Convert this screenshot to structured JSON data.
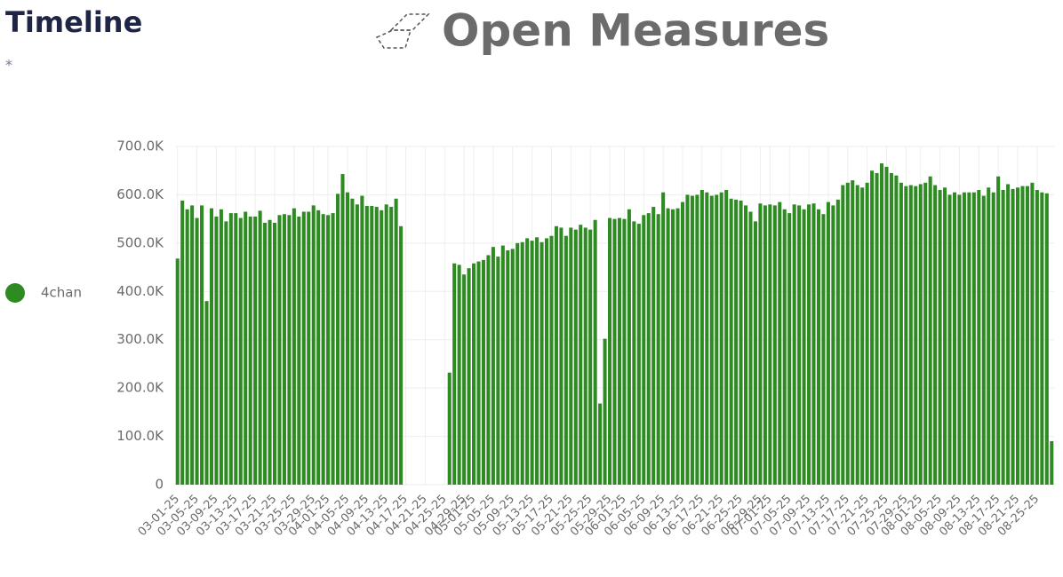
{
  "header": {
    "title": "Timeline",
    "subtitle": "*",
    "brand": "Open Measures"
  },
  "chart_data": {
    "type": "bar",
    "grid": true,
    "legend": "left",
    "ylim": [
      0,
      700000
    ],
    "yticks": [
      0,
      {
        "value": 100000,
        "label": "100.0K"
      },
      {
        "value": 200000,
        "label": "200.0K"
      },
      {
        "value": 300000,
        "label": "300.0K"
      },
      {
        "value": 400000,
        "label": "400.0K"
      },
      {
        "value": 500000,
        "label": "500.0K"
      },
      {
        "value": 600000,
        "label": "600.0K"
      },
      {
        "value": 700000,
        "label": "700.0K"
      }
    ],
    "categories": [
      "03-01-25",
      null,
      null,
      null,
      "03-05-25",
      null,
      null,
      null,
      "03-09-25",
      null,
      null,
      null,
      "03-13-25",
      null,
      null,
      null,
      "03-17-25",
      null,
      null,
      null,
      "03-21-25",
      null,
      null,
      null,
      "03-25-25",
      null,
      null,
      null,
      "03-29-25",
      null,
      null,
      "04-01-25",
      null,
      null,
      null,
      "04-05-25",
      null,
      null,
      null,
      "04-09-25",
      null,
      null,
      null,
      "04-13-25",
      null,
      null,
      null,
      "04-17-25",
      null,
      null,
      null,
      "04-21-25",
      null,
      null,
      null,
      "04-25-25",
      null,
      null,
      null,
      "04-29-25",
      null,
      "05-01-25",
      null,
      null,
      null,
      "05-05-25",
      null,
      null,
      null,
      "05-09-25",
      null,
      null,
      null,
      "05-13-25",
      null,
      null,
      null,
      "05-17-25",
      null,
      null,
      null,
      "05-21-25",
      null,
      null,
      null,
      "05-25-25",
      null,
      null,
      null,
      "05-29-25",
      null,
      null,
      "06-01-25",
      null,
      null,
      null,
      "06-05-25",
      null,
      null,
      null,
      "06-09-25",
      null,
      null,
      null,
      "06-13-25",
      null,
      null,
      null,
      "06-17-25",
      null,
      null,
      null,
      "06-21-25",
      null,
      null,
      null,
      "06-25-25",
      null,
      null,
      null,
      "06-29-25",
      null,
      "07-01-25",
      null,
      null,
      null,
      "07-05-25",
      null,
      null,
      null,
      "07-09-25",
      null,
      null,
      null,
      "07-13-25",
      null,
      null,
      null,
      "07-17-25",
      null,
      null,
      null,
      "07-21-25",
      null,
      null,
      null,
      "07-25-25",
      null,
      null,
      null,
      "07-29-25",
      null,
      null,
      "08-01-25",
      null,
      null,
      null,
      "08-05-25",
      null,
      null,
      null,
      "08-09-25",
      null,
      null,
      null,
      "08-13-25",
      null,
      null,
      null,
      "08-17-25",
      null,
      null,
      null,
      "08-21-25",
      null,
      null,
      null,
      "08-25-25",
      null,
      null,
      null
    ],
    "series": [
      {
        "name": "4chan",
        "color": "#2e8b22",
        "values": [
          468000,
          588000,
          570000,
          578000,
          552000,
          578000,
          380000,
          572000,
          555000,
          570000,
          545000,
          562000,
          562000,
          552000,
          565000,
          555000,
          555000,
          567000,
          542000,
          548000,
          542000,
          558000,
          560000,
          558000,
          572000,
          555000,
          565000,
          565000,
          578000,
          568000,
          560000,
          558000,
          562000,
          602000,
          643000,
          605000,
          592000,
          580000,
          598000,
          577000,
          577000,
          575000,
          568000,
          580000,
          575000,
          592000,
          535000,
          null,
          null,
          null,
          null,
          null,
          null,
          null,
          null,
          null,
          232000,
          458000,
          455000,
          435000,
          448000,
          458000,
          462000,
          465000,
          475000,
          492000,
          472000,
          495000,
          485000,
          488000,
          500000,
          502000,
          510000,
          505000,
          512000,
          502000,
          510000,
          515000,
          535000,
          532000,
          515000,
          532000,
          528000,
          538000,
          532000,
          528000,
          548000,
          168000,
          302000,
          552000,
          550000,
          552000,
          550000,
          570000,
          545000,
          540000,
          558000,
          562000,
          575000,
          560000,
          605000,
          572000,
          570000,
          572000,
          585000,
          600000,
          598000,
          600000,
          610000,
          605000,
          598000,
          600000,
          605000,
          610000,
          592000,
          590000,
          588000,
          578000,
          565000,
          545000,
          582000,
          578000,
          580000,
          578000,
          585000,
          570000,
          562000,
          580000,
          578000,
          570000,
          580000,
          582000,
          570000,
          560000,
          585000,
          578000,
          590000,
          620000,
          625000,
          630000,
          620000,
          615000,
          625000,
          650000,
          645000,
          665000,
          658000,
          645000,
          640000,
          625000,
          618000,
          620000,
          618000,
          622000,
          625000,
          638000,
          620000,
          610000,
          615000,
          600000,
          605000,
          600000,
          605000,
          605000,
          605000,
          610000,
          598000,
          615000,
          605000,
          638000,
          610000,
          622000,
          612000,
          615000,
          618000,
          618000,
          625000,
          610000,
          605000,
          603000,
          90000
        ]
      }
    ]
  }
}
